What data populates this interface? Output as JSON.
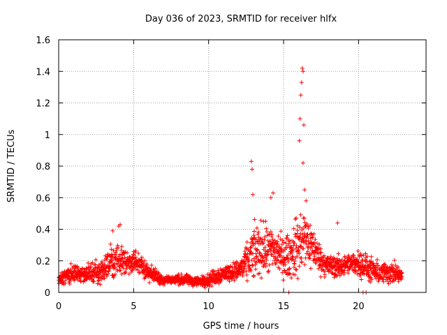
{
  "chart_data": {
    "type": "scatter",
    "title": "Day 036 of 2023, SRMTID for receiver hlfx",
    "xlabel": "GPS time / hours",
    "ylabel": "SRMTID / TECUs",
    "xlim": [
      0,
      24.5
    ],
    "ylim": [
      0,
      1.6
    ],
    "x_ticks": [
      "0",
      "5",
      "10",
      "15",
      "20"
    ],
    "x_tick_values": [
      0,
      5,
      10,
      15,
      20
    ],
    "y_ticks": [
      "0",
      "0.2",
      "0.4",
      "0.6",
      "0.8",
      "1",
      "1.2",
      "1.4",
      "1.6"
    ],
    "y_tick_values": [
      0,
      0.2,
      0.4,
      0.6,
      0.8,
      1.0,
      1.2,
      1.4,
      1.6
    ],
    "grid": true,
    "marker": "plus",
    "series": [
      {
        "name": "SRMTID",
        "color": "#ff0000",
        "envelope": {
          "x": [
            0.0,
            0.5,
            1.0,
            1.5,
            2.0,
            2.5,
            3.0,
            3.5,
            4.0,
            4.5,
            5.0,
            5.5,
            6.0,
            6.5,
            7.0,
            7.5,
            8.0,
            8.5,
            9.0,
            9.5,
            10.0,
            10.5,
            11.0,
            11.5,
            12.0,
            12.5,
            13.0,
            13.5,
            14.0,
            14.5,
            15.0,
            15.5,
            16.0,
            16.5,
            17.0,
            17.5,
            18.0,
            18.5,
            19.0,
            19.5,
            20.0,
            20.5,
            21.0,
            21.5,
            22.0,
            22.5,
            22.9
          ],
          "y_center": [
            0.08,
            0.1,
            0.12,
            0.11,
            0.12,
            0.13,
            0.15,
            0.19,
            0.21,
            0.19,
            0.2,
            0.17,
            0.13,
            0.1,
            0.08,
            0.08,
            0.08,
            0.08,
            0.07,
            0.07,
            0.08,
            0.1,
            0.12,
            0.13,
            0.14,
            0.18,
            0.25,
            0.28,
            0.26,
            0.27,
            0.22,
            0.24,
            0.3,
            0.34,
            0.28,
            0.2,
            0.17,
            0.16,
            0.17,
            0.18,
            0.19,
            0.16,
            0.13,
            0.12,
            0.13,
            0.12,
            0.1
          ],
          "spread": [
            0.03,
            0.05,
            0.06,
            0.05,
            0.05,
            0.06,
            0.08,
            0.1,
            0.1,
            0.08,
            0.07,
            0.06,
            0.05,
            0.04,
            0.03,
            0.03,
            0.03,
            0.03,
            0.03,
            0.03,
            0.04,
            0.05,
            0.05,
            0.05,
            0.06,
            0.1,
            0.16,
            0.16,
            0.14,
            0.14,
            0.12,
            0.14,
            0.2,
            0.18,
            0.12,
            0.08,
            0.07,
            0.07,
            0.06,
            0.06,
            0.08,
            0.08,
            0.07,
            0.06,
            0.07,
            0.06,
            0.04
          ]
        },
        "peaks": [
          {
            "x": 3.6,
            "y": 0.39
          },
          {
            "x": 4.0,
            "y": 0.42
          },
          {
            "x": 4.1,
            "y": 0.43
          },
          {
            "x": 12.85,
            "y": 0.83
          },
          {
            "x": 12.9,
            "y": 0.78
          },
          {
            "x": 12.95,
            "y": 0.62
          },
          {
            "x": 14.3,
            "y": 0.63
          },
          {
            "x": 14.15,
            "y": 0.6
          },
          {
            "x": 16.05,
            "y": 0.96
          },
          {
            "x": 16.1,
            "y": 1.1
          },
          {
            "x": 16.15,
            "y": 1.25
          },
          {
            "x": 16.2,
            "y": 1.33
          },
          {
            "x": 16.25,
            "y": 1.42
          },
          {
            "x": 16.3,
            "y": 1.4
          },
          {
            "x": 16.35,
            "y": 1.06
          },
          {
            "x": 16.3,
            "y": 0.82
          },
          {
            "x": 16.4,
            "y": 0.65
          },
          {
            "x": 16.5,
            "y": 0.58
          },
          {
            "x": 18.6,
            "y": 0.44
          },
          {
            "x": 15.35,
            "y": 0.0
          },
          {
            "x": 20.3,
            "y": 0.0
          },
          {
            "x": 20.5,
            "y": 0.0
          }
        ]
      }
    ]
  }
}
